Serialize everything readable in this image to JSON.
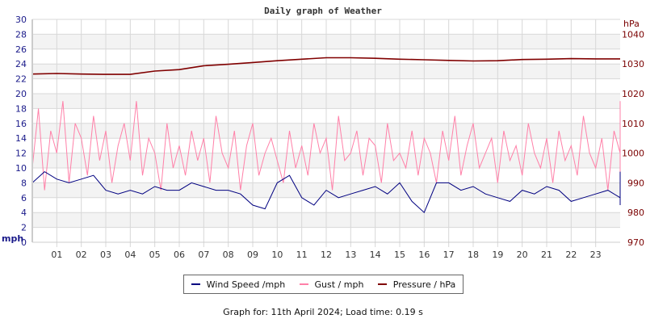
{
  "chart_data": {
    "type": "line",
    "title": "Daily graph of Weather",
    "xlabel": "",
    "ylabel_left": "mph",
    "ylabel_right": "hPa",
    "x_ticks": [
      "01",
      "02",
      "03",
      "04",
      "05",
      "06",
      "07",
      "08",
      "09",
      "10",
      "11",
      "12",
      "13",
      "14",
      "15",
      "16",
      "17",
      "18",
      "19",
      "20",
      "21",
      "22",
      "23"
    ],
    "xlim": [
      0,
      24
    ],
    "ylim_left": [
      0,
      30
    ],
    "y_ticks_left": [
      0,
      2,
      4,
      6,
      8,
      10,
      12,
      14,
      16,
      18,
      20,
      22,
      24,
      26,
      28,
      30
    ],
    "ylim_right": [
      970,
      1045
    ],
    "y_ticks_right": [
      970,
      980,
      990,
      1000,
      1010,
      1020,
      1030,
      1040
    ],
    "grid": true,
    "legend_position": "bottom",
    "series": [
      {
        "name": "Wind Speed /mph",
        "axis": "left",
        "color": "#000080",
        "step_hours": 0.5,
        "values": [
          8,
          9.5,
          8.5,
          8,
          8.5,
          9,
          7,
          6.5,
          7,
          6.5,
          7.5,
          7,
          7,
          8,
          7.5,
          7,
          7,
          6.5,
          5,
          4.5,
          8,
          9,
          6,
          5,
          7,
          6,
          6.5,
          7,
          7.5,
          6.5,
          8,
          5.5,
          4,
          8,
          8,
          7,
          7.5,
          6.5,
          6,
          5.5,
          7,
          6.5,
          7.5,
          7,
          5.5,
          6,
          6.5,
          7,
          6,
          5,
          6.5,
          7,
          6,
          5.5,
          7,
          6.5,
          9,
          9,
          7.5,
          8,
          9,
          7.5,
          8,
          8.5,
          9.5,
          7,
          8.5,
          7,
          9,
          8,
          6,
          7.5,
          7,
          6.5,
          6.5
        ]
      },
      {
        "name": "Gust / mph",
        "axis": "left",
        "color": "#ff80a8",
        "step_hours": 0.25,
        "values": [
          10,
          18,
          7,
          15,
          12,
          19,
          8,
          16,
          14,
          9,
          17,
          11,
          15,
          8,
          13,
          16,
          11,
          19,
          9,
          14,
          12,
          7,
          16,
          10,
          13,
          9,
          15,
          11,
          14,
          8,
          17,
          12,
          10,
          15,
          7,
          13,
          16,
          9,
          12,
          14,
          11,
          8,
          15,
          10,
          13,
          9,
          16,
          12,
          14,
          7,
          17,
          11,
          12,
          15,
          9,
          14,
          13,
          8,
          16,
          11,
          12,
          10,
          15,
          9,
          14,
          12,
          8,
          15,
          11,
          17,
          9,
          13,
          16,
          10,
          12,
          14,
          8,
          15,
          11,
          13,
          9,
          16,
          12,
          10,
          14,
          8,
          15,
          11,
          13,
          9,
          17,
          12,
          10,
          14,
          7,
          15,
          12,
          9,
          16,
          11,
          14,
          8,
          13,
          10,
          15,
          9,
          17,
          12,
          11,
          14,
          8,
          16,
          10,
          13,
          12,
          9,
          15,
          11,
          14,
          10,
          16,
          8,
          13,
          12,
          15,
          9,
          14,
          11,
          17,
          10,
          13,
          8,
          16,
          12,
          11,
          15,
          9,
          14,
          10,
          13,
          12,
          16,
          8,
          15,
          11,
          14,
          9,
          13,
          12,
          10,
          16,
          9,
          15,
          11,
          13,
          8,
          17,
          12,
          14,
          10,
          15,
          9,
          16,
          11,
          13,
          12,
          14,
          8,
          15,
          10,
          17,
          11,
          13,
          9,
          16,
          12,
          19,
          10,
          14,
          8,
          15,
          11,
          13,
          9,
          17,
          12,
          16,
          10
        ]
      },
      {
        "name": "Pressure / hPa",
        "axis": "right",
        "color": "#800000",
        "step_hours": 1,
        "values": [
          1026.6,
          1026.8,
          1026.6,
          1026.5,
          1026.5,
          1027.6,
          1028.1,
          1029.4,
          1029.9,
          1030.5,
          1031.1,
          1031.6,
          1032.1,
          1032.1,
          1031.9,
          1031.6,
          1031.4,
          1031.2,
          1031.0,
          1031.1,
          1031.5,
          1031.6,
          1031.8,
          1031.7,
          1031.7
        ]
      }
    ]
  },
  "legend": {
    "items": [
      {
        "label": "Wind Speed /mph",
        "color": "#000080"
      },
      {
        "label": "Gust / mph",
        "color": "#ff80a8"
      },
      {
        "label": "Pressure / hPa",
        "color": "#800000"
      }
    ]
  },
  "footer": "Graph for: 11th April 2024; Load time: 0.19 s"
}
